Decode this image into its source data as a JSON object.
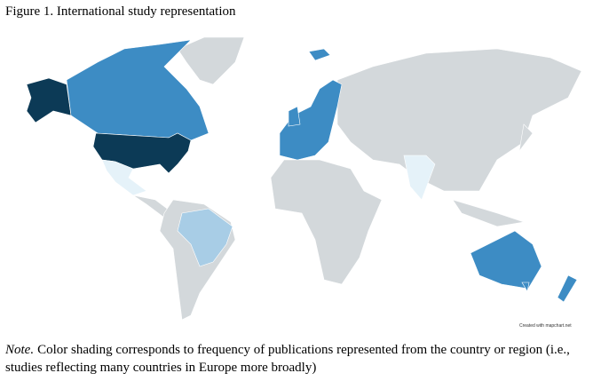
{
  "figure": {
    "title": "Figure 1. International study representation",
    "credit": "Created with mapchart.net",
    "note": {
      "label": "Note.",
      "text": "Color shading corresponds to frequency of publications represented from the country or region (i.e., studies reflecting many countries in Europe more broadly)"
    }
  }
}
